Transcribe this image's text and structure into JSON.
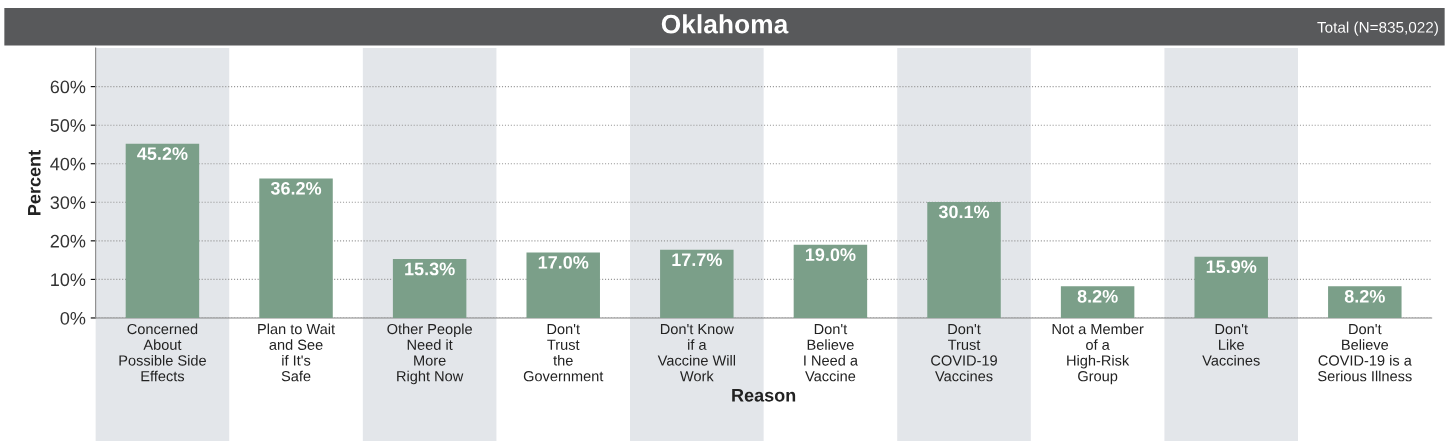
{
  "chart_data": {
    "type": "bar",
    "title": "Oklahoma",
    "xlabel": "Reason",
    "ylabel": "Percent",
    "annotations": [
      "Total (N=835,022)"
    ],
    "categories": [
      "Concerned\nAbout\nPossible Side\nEffects",
      "Plan to Wait\nand See\nif It's\nSafe",
      "Other People\nNeed it\nMore\nRight Now",
      "Don't\nTrust\nthe\nGovernment",
      "Don't Know\nif a\nVaccine Will\nWork",
      "Don't\nBelieve\nI Need a\nVaccine",
      "Don't\nTrust\nCOVID-19\nVaccines",
      "Not a Member\nof a\nHigh-Risk\nGroup",
      "Don't\nLike\nVaccines",
      "Don't\nBelieve\nCOVID-19 is a\nSerious Illness"
    ],
    "values": [
      45.2,
      36.2,
      15.3,
      17.0,
      17.7,
      19.0,
      30.1,
      8.2,
      15.9,
      8.2
    ],
    "value_labels": [
      "45.2%",
      "36.2%",
      "15.3%",
      "17.0%",
      "17.7%",
      "19.0%",
      "30.1%",
      "8.2%",
      "15.9%",
      "8.2%"
    ],
    "color": "#7b9f89",
    "ylim": [
      0,
      70
    ],
    "yticks": [
      {
        "value": 0,
        "label": "0%"
      },
      {
        "value": 10,
        "label": "10%"
      },
      {
        "value": 20,
        "label": "20%"
      },
      {
        "value": 30,
        "label": "30%"
      },
      {
        "value": 40,
        "label": "40%"
      },
      {
        "value": 50,
        "label": "50%"
      },
      {
        "value": 60,
        "label": "60%"
      }
    ],
    "grid": "y",
    "legend": false,
    "bands": [
      {
        "axis": "x",
        "from": "Concerned\nAbout\nPossible Side\nEffects",
        "to": "Concerned\nAbout\nPossible Side\nEffects",
        "color": "#e3e6ea"
      },
      {
        "axis": "x",
        "from": "Other People\nNeed it\nMore\nRight Now",
        "to": "Other People\nNeed it\nMore\nRight Now",
        "color": "#e3e6ea"
      },
      {
        "axis": "x",
        "from": "Don't Know\nif a\nVaccine Will\nWork",
        "to": "Don't Know\nif a\nVaccine Will\nWork",
        "color": "#e3e6ea"
      },
      {
        "axis": "x",
        "from": "Don't\nTrust\nCOVID-19\nVaccines",
        "to": "Don't\nTrust\nCOVID-19\nVaccines",
        "color": "#e3e6ea"
      },
      {
        "axis": "x",
        "from": "Don't\nLike\nVaccines",
        "to": "Don't\nLike\nVaccines",
        "color": "#e3e6ea"
      }
    ]
  }
}
